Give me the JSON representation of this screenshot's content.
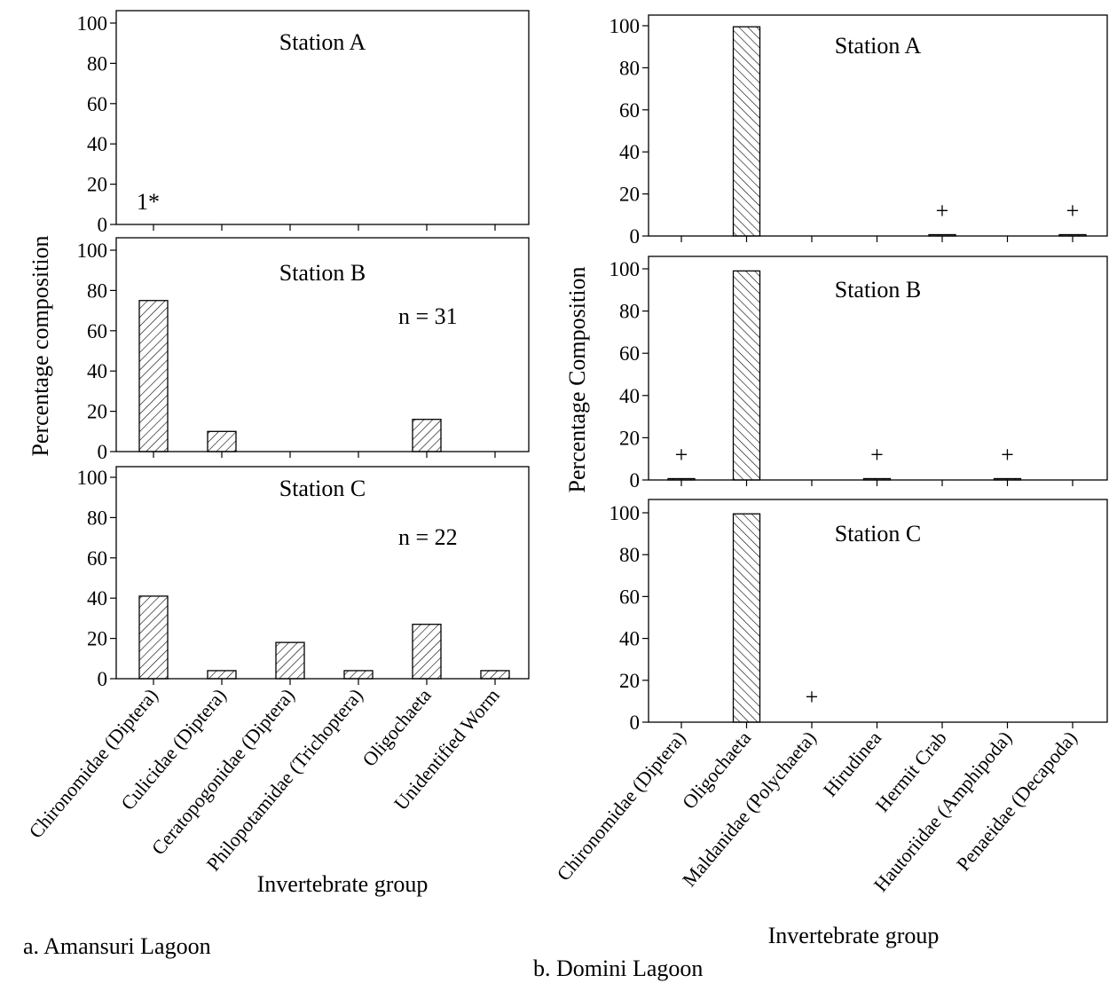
{
  "figure": {
    "left_caption": "a. Amansuri Lagoon",
    "right_caption": "b. Domini Lagoon"
  },
  "chart_data": [
    {
      "type": "bar",
      "figure": "a. Amansuri Lagoon",
      "ylabel": "Percentage composition",
      "xlabel": "Invertebrate group",
      "categories": [
        "Chironomidae (Diptera)",
        "Culicidae (Diptera)",
        "Ceratopogonidae (Diptera)",
        "Philopotamidae (Trichoptera)",
        "Oligochaeta",
        "Unidentified Worm"
      ],
      "yticks": [
        "0",
        "20",
        "40",
        "60",
        "80",
        "100"
      ],
      "ylim": [
        0,
        100
      ],
      "hatch": "forward-diagonal",
      "panels": [
        {
          "title": "Station A",
          "values": [
            0,
            0,
            0,
            0,
            0,
            0
          ],
          "note": "1*"
        },
        {
          "title": "Station B",
          "values": [
            75,
            10,
            0,
            0,
            16,
            0
          ],
          "note": "n = 31"
        },
        {
          "title": "Station C",
          "values": [
            41,
            4,
            18,
            4,
            27,
            4
          ],
          "note": "n = 22"
        }
      ]
    },
    {
      "type": "bar",
      "figure": "b. Domini Lagoon",
      "ylabel": "Percentage Composition",
      "xlabel": "Invertebrate group",
      "categories": [
        "Chironomidae (Diptera)",
        "Oligochaeta",
        "Maldanidae (Polychaeta)",
        "Hirudinea",
        "Hermit Crab",
        "Hautoriidae (Amphipoda)",
        "Penaeidae (Decapoda)"
      ],
      "yticks": [
        "0",
        "20",
        "40",
        "60",
        "80",
        "100"
      ],
      "ylim": [
        0,
        100
      ],
      "hatch": "backward-diagonal",
      "trace_marker": "+",
      "panels": [
        {
          "title": "Station A",
          "values": [
            0,
            99.5,
            0,
            0,
            0.5,
            0,
            0.5
          ],
          "plus": [
            false,
            false,
            false,
            false,
            true,
            false,
            true
          ]
        },
        {
          "title": "Station B",
          "values": [
            0.5,
            99,
            0,
            0.5,
            0,
            0.5,
            0
          ],
          "plus": [
            true,
            false,
            false,
            true,
            false,
            true,
            false
          ]
        },
        {
          "title": "Station C",
          "values": [
            0,
            99.5,
            0,
            0,
            0,
            0,
            0
          ],
          "plus": [
            false,
            false,
            true,
            false,
            false,
            false,
            false
          ]
        }
      ]
    }
  ]
}
